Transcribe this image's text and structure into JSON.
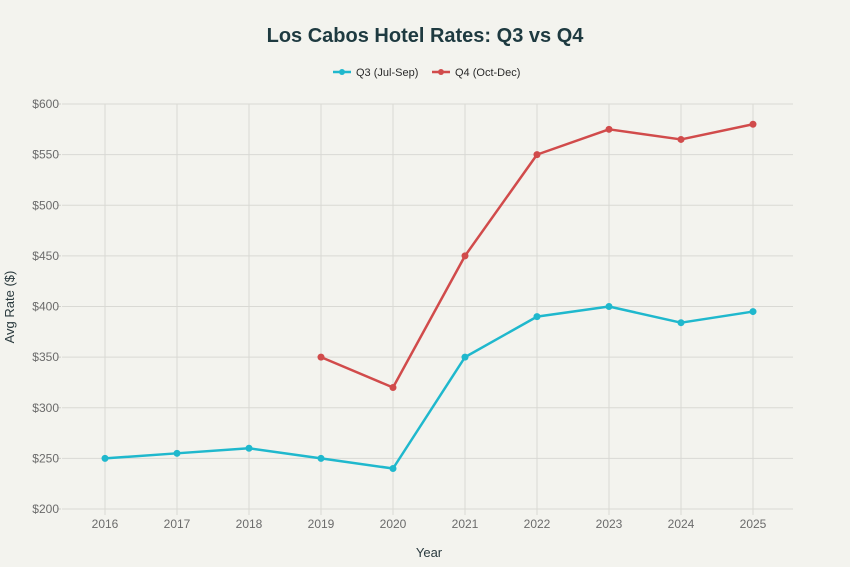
{
  "chart_data": {
    "type": "line",
    "title": "Los Cabos Hotel Rates: Q3 vs Q4",
    "xlabel": "Year",
    "ylabel": "Avg Rate ($)",
    "x": [
      2016,
      2017,
      2018,
      2019,
      2020,
      2021,
      2022,
      2023,
      2024,
      2025
    ],
    "x_tick_labels": [
      "2016",
      "2017",
      "2018",
      "2019",
      "2020",
      "2021",
      "2022",
      "2023",
      "2024",
      "2025"
    ],
    "ylim": [
      200,
      600
    ],
    "y_ticks": [
      200,
      250,
      300,
      350,
      400,
      450,
      500,
      550,
      600
    ],
    "y_tick_labels": [
      "$200",
      "$250",
      "$300",
      "$350",
      "$400",
      "$450",
      "$500",
      "$550",
      "$600"
    ],
    "grid": true,
    "legend_position": "top-center",
    "series": [
      {
        "name": "Q3 (Jul-Sep)",
        "color": "#1fb8cd",
        "values": [
          250,
          255,
          260,
          250,
          240,
          350,
          390,
          400,
          384,
          395
        ]
      },
      {
        "name": "Q4 (Oct-Dec)",
        "color": "#d14b4b",
        "values": [
          null,
          null,
          null,
          350,
          320,
          450,
          550,
          575,
          565,
          580
        ]
      }
    ]
  }
}
